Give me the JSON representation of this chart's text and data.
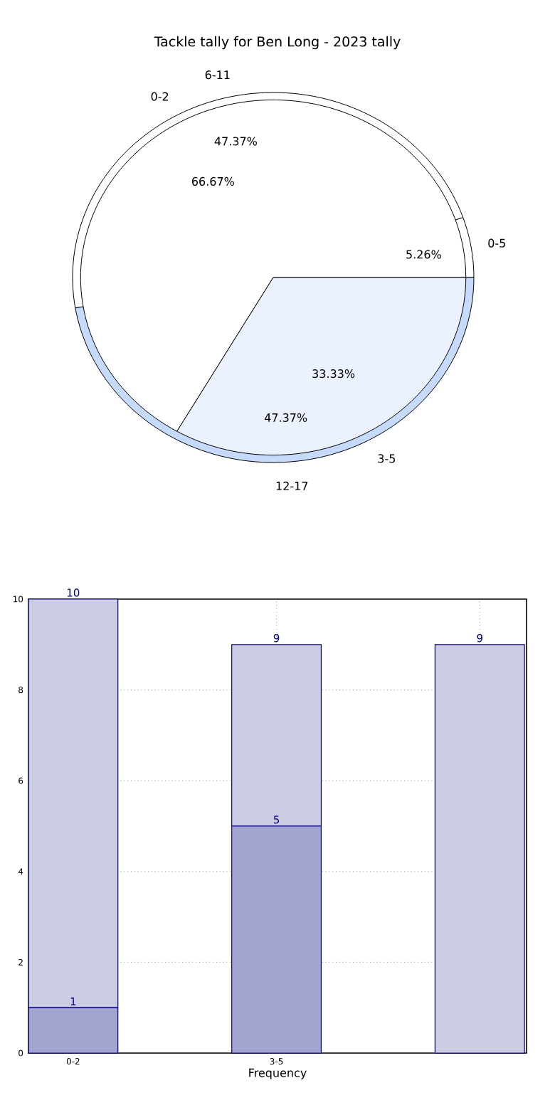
{
  "chart_data": [
    {
      "type": "pie",
      "title": "Tackle tally for Ben Long - 2023 tally",
      "categories": [
        "0-2",
        "3-5"
      ],
      "values": [
        66.67,
        33.33
      ],
      "colors": [
        "#ffffff",
        "#ebf1fd"
      ],
      "value_labels": [
        "66.67%",
        "33.33%"
      ]
    },
    {
      "type": "pie",
      "categories": [
        "0-5",
        "6-11",
        "12-17"
      ],
      "values": [
        5.26,
        47.37,
        47.37
      ],
      "colors": [
        "#ffffff",
        "#ffffff",
        "#c6dafc"
      ],
      "value_labels": [
        "5.26%",
        "47.37%",
        "47.37%"
      ]
    },
    {
      "type": "bar",
      "stacked": true,
      "xlabel": "Frequency",
      "categories": [
        "0-2",
        "3-5",
        null
      ],
      "ylim": [
        0,
        10
      ],
      "yticks": [
        0,
        2,
        4,
        6,
        8,
        10
      ],
      "grid": true,
      "series": [
        {
          "color": "#a3a5d1",
          "values": [
            1,
            5,
            null
          ],
          "value_labels": [
            "1",
            "5",
            null
          ]
        },
        {
          "color": "#cccde3",
          "values": [
            9,
            4,
            9
          ]
        }
      ],
      "totals": [
        "10",
        "9",
        "9"
      ]
    }
  ]
}
